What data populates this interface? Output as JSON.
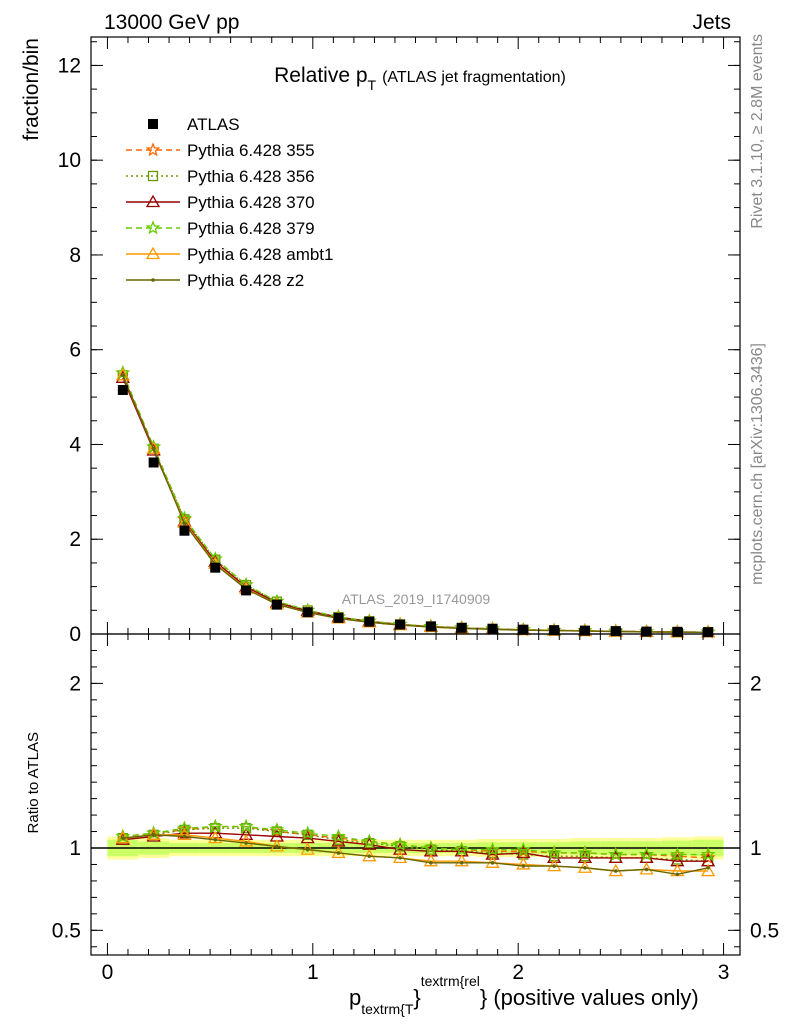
{
  "header": {
    "left": "13000 GeV pp",
    "right": "Jets"
  },
  "side_labels": {
    "rivet": "Rivet 3.1.10, ≥ 2.8M events",
    "mcplots": "mcplots.cern.ch [arXiv:1306.3436]"
  },
  "watermark": "ATLAS_2019_I1740909",
  "colors": {
    "data": "#000000",
    "p355": "#ff6600",
    "p356": "#669900",
    "p370": "#990000",
    "p379": "#66cc00",
    "ambt1": "#ff9900",
    "z2": "#666600",
    "band_inner": "#ccff66",
    "band_outer": "#ffff99",
    "ref_line": "#000000"
  },
  "chart_data": {
    "type": "line",
    "title_main": "Relative p",
    "title_sub": "T",
    "title_rest": "(ATLAS jet fragmentation)",
    "ylabel": "fraction/bin",
    "ratio_ylabel": "Ratio to ATLAS",
    "xlabel_p": "p",
    "xlabel_sub": "textrm{T",
    "xlabel_brace": "}",
    "xlabel_sup": "textrm{rel",
    "xlabel_rest": "} (positive values only)",
    "xlim": [
      -0.08,
      3.08
    ],
    "ylim": [
      0,
      12.6
    ],
    "ratio_ylim": [
      0.35,
      2.3
    ],
    "xticks": [
      {
        "v": 0,
        "label": "0"
      },
      {
        "v": 1,
        "label": "1"
      },
      {
        "v": 2,
        "label": "2"
      },
      {
        "v": 3,
        "label": "3"
      }
    ],
    "yticks": [
      {
        "v": 0,
        "label": "0"
      },
      {
        "v": 2,
        "label": "2"
      },
      {
        "v": 4,
        "label": "4"
      },
      {
        "v": 6,
        "label": "6"
      },
      {
        "v": 8,
        "label": "8"
      },
      {
        "v": 10,
        "label": "10"
      },
      {
        "v": 12,
        "label": "12"
      }
    ],
    "ratio_yticks": [
      {
        "v": 0.5,
        "label": "0.5"
      },
      {
        "v": 1,
        "label": "1"
      },
      {
        "v": 2,
        "label": "2"
      }
    ],
    "x": [
      0.075,
      0.225,
      0.375,
      0.525,
      0.675,
      0.825,
      0.975,
      1.125,
      1.275,
      1.425,
      1.575,
      1.725,
      1.875,
      2.025,
      2.175,
      2.325,
      2.475,
      2.625,
      2.775,
      2.925
    ],
    "data_values": [
      5.15,
      3.62,
      2.18,
      1.4,
      0.92,
      0.62,
      0.46,
      0.34,
      0.26,
      0.2,
      0.16,
      0.13,
      0.11,
      0.09,
      0.08,
      0.07,
      0.06,
      0.05,
      0.045,
      0.04
    ],
    "band_inner": [
      0.05,
      0.04,
      0.03,
      0.03,
      0.03,
      0.03,
      0.03,
      0.03,
      0.03,
      0.03,
      0.03,
      0.03,
      0.035,
      0.035,
      0.035,
      0.04,
      0.04,
      0.04,
      0.045,
      0.05
    ],
    "band_outer": [
      0.07,
      0.06,
      0.05,
      0.05,
      0.05,
      0.05,
      0.05,
      0.05,
      0.05,
      0.05,
      0.05,
      0.05,
      0.055,
      0.055,
      0.055,
      0.06,
      0.06,
      0.06,
      0.065,
      0.07
    ],
    "series": [
      {
        "name": "Pythia 6.428 355",
        "key": "p355",
        "dash": "6,4",
        "marker": "star",
        "ratio": [
          1.07,
          1.09,
          1.11,
          1.13,
          1.13,
          1.1,
          1.08,
          1.06,
          1.04,
          1.02,
          1.0,
          0.99,
          0.98,
          0.98,
          0.97,
          0.97,
          0.96,
          0.96,
          0.95,
          0.94
        ]
      },
      {
        "name": "Pythia 6.428 356",
        "key": "p356",
        "dash": "2,3",
        "marker": "square",
        "ratio": [
          1.06,
          1.08,
          1.11,
          1.12,
          1.12,
          1.1,
          1.08,
          1.05,
          1.03,
          1.01,
          0.99,
          0.98,
          0.97,
          0.96,
          0.95,
          0.95,
          0.94,
          0.94,
          0.93,
          0.92
        ]
      },
      {
        "name": "Pythia 6.428 370",
        "key": "p370",
        "dash": "",
        "marker": "triangle",
        "ratio": [
          1.05,
          1.07,
          1.09,
          1.09,
          1.08,
          1.07,
          1.06,
          1.04,
          1.02,
          0.99,
          0.98,
          0.98,
          0.96,
          0.97,
          0.94,
          0.94,
          0.94,
          0.94,
          0.92,
          0.92
        ]
      },
      {
        "name": "Pythia 6.428 379",
        "key": "p379",
        "dash": "6,4",
        "marker": "star",
        "ratio": [
          1.07,
          1.09,
          1.12,
          1.13,
          1.13,
          1.11,
          1.09,
          1.07,
          1.04,
          1.02,
          1.0,
          0.99,
          0.99,
          0.99,
          0.97,
          0.97,
          0.96,
          0.96,
          0.96,
          0.96
        ]
      },
      {
        "name": "Pythia 6.428 ambt1",
        "key": "ambt1",
        "dash": "",
        "marker": "triangle",
        "ratio": [
          1.06,
          1.08,
          1.08,
          1.06,
          1.04,
          1.01,
          0.99,
          0.97,
          0.95,
          0.94,
          0.92,
          0.92,
          0.91,
          0.9,
          0.89,
          0.88,
          0.86,
          0.87,
          0.86,
          0.86
        ]
      },
      {
        "name": "Pythia 6.428 z2",
        "key": "z2",
        "dash": "",
        "marker": "dot",
        "ratio": [
          1.06,
          1.08,
          1.07,
          1.05,
          1.03,
          1.01,
          0.99,
          0.97,
          0.95,
          0.94,
          0.91,
          0.91,
          0.91,
          0.89,
          0.89,
          0.88,
          0.86,
          0.87,
          0.84,
          0.88
        ]
      }
    ],
    "legend": {
      "position": "top-left",
      "data_label": "ATLAS"
    }
  }
}
